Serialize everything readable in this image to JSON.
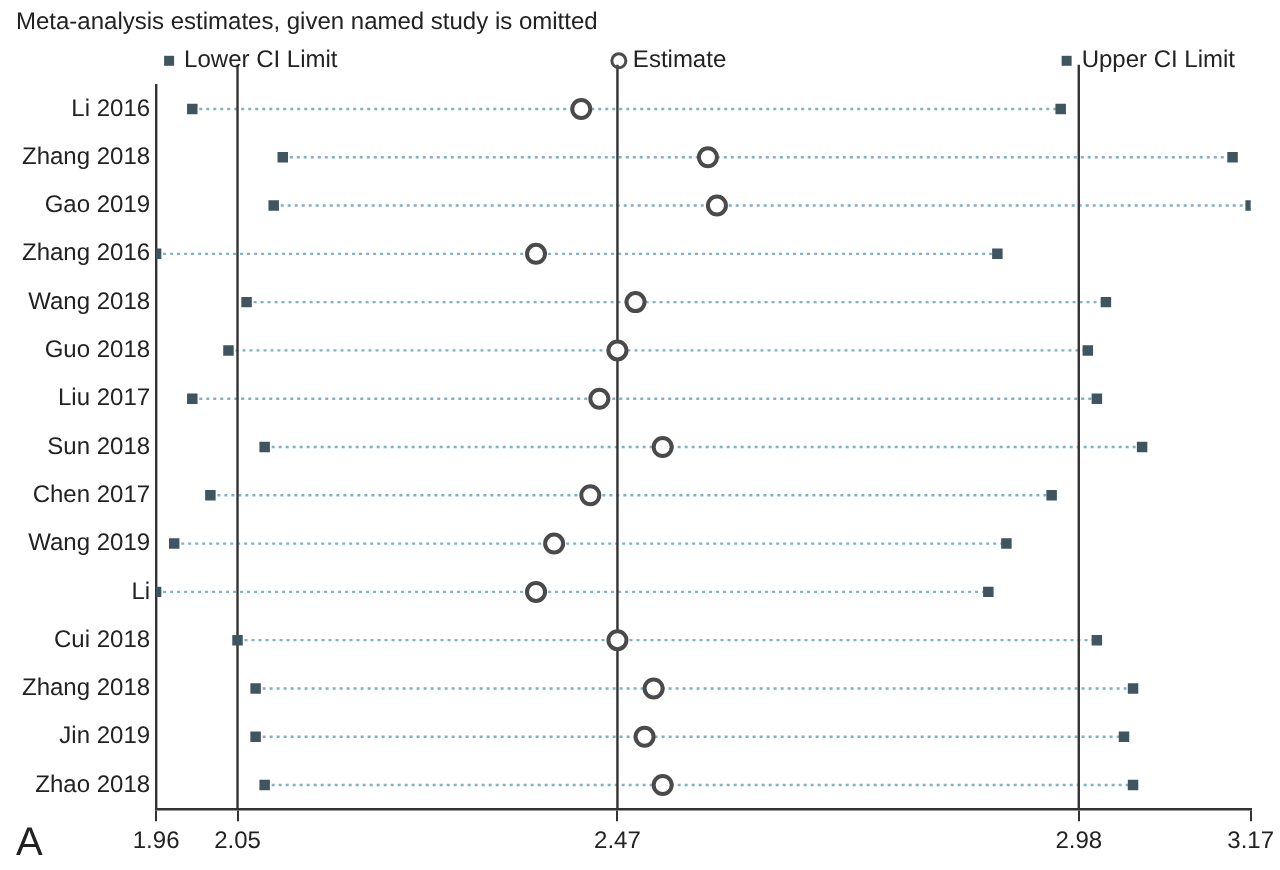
{
  "chart_data": {
    "type": "scatter",
    "orientation": "horizontal",
    "title": "Meta-analysis estimates, given named study is omitted",
    "categories": [
      "Li 2016",
      "Zhang 2018",
      "Gao 2019",
      "Zhang 2016",
      "Wang 2018",
      "Guo 2018",
      "Liu 2017",
      "Sun 2018",
      "Chen 2017",
      "Wang 2019",
      "Li",
      "Cui 2018",
      "Zhang 2018",
      "Jin 2019",
      "Zhao 2018"
    ],
    "series": [
      {
        "name": "Lower CI Limit",
        "color": "#3f5560",
        "marker": "square",
        "values": [
          2.0,
          2.1,
          2.09,
          1.96,
          2.06,
          2.04,
          2.0,
          2.08,
          2.02,
          1.98,
          1.96,
          2.05,
          2.07,
          2.07,
          2.08
        ]
      },
      {
        "name": "Estimate",
        "color": "#4a4a4a",
        "marker": "circle",
        "values": [
          2.43,
          2.57,
          2.58,
          2.38,
          2.49,
          2.47,
          2.45,
          2.52,
          2.44,
          2.4,
          2.38,
          2.47,
          2.51,
          2.5,
          2.52
        ]
      },
      {
        "name": "Upper CI Limit",
        "color": "#3f5560",
        "marker": "square",
        "values": [
          2.96,
          3.15,
          3.17,
          2.89,
          3.01,
          2.99,
          3.0,
          3.05,
          2.95,
          2.9,
          2.88,
          3.0,
          3.04,
          3.03,
          3.04
        ]
      }
    ],
    "line_style": "dotted",
    "xlim": [
      1.96,
      3.17
    ],
    "xticks": [
      1.96,
      2.05,
      2.47,
      2.98,
      3.17
    ],
    "ref_lines": [
      {
        "axis": "x",
        "value": 2.05
      },
      {
        "axis": "x",
        "value": 2.47
      },
      {
        "axis": "x",
        "value": 2.98
      }
    ],
    "legend": "top",
    "annotations": [
      "A"
    ]
  }
}
